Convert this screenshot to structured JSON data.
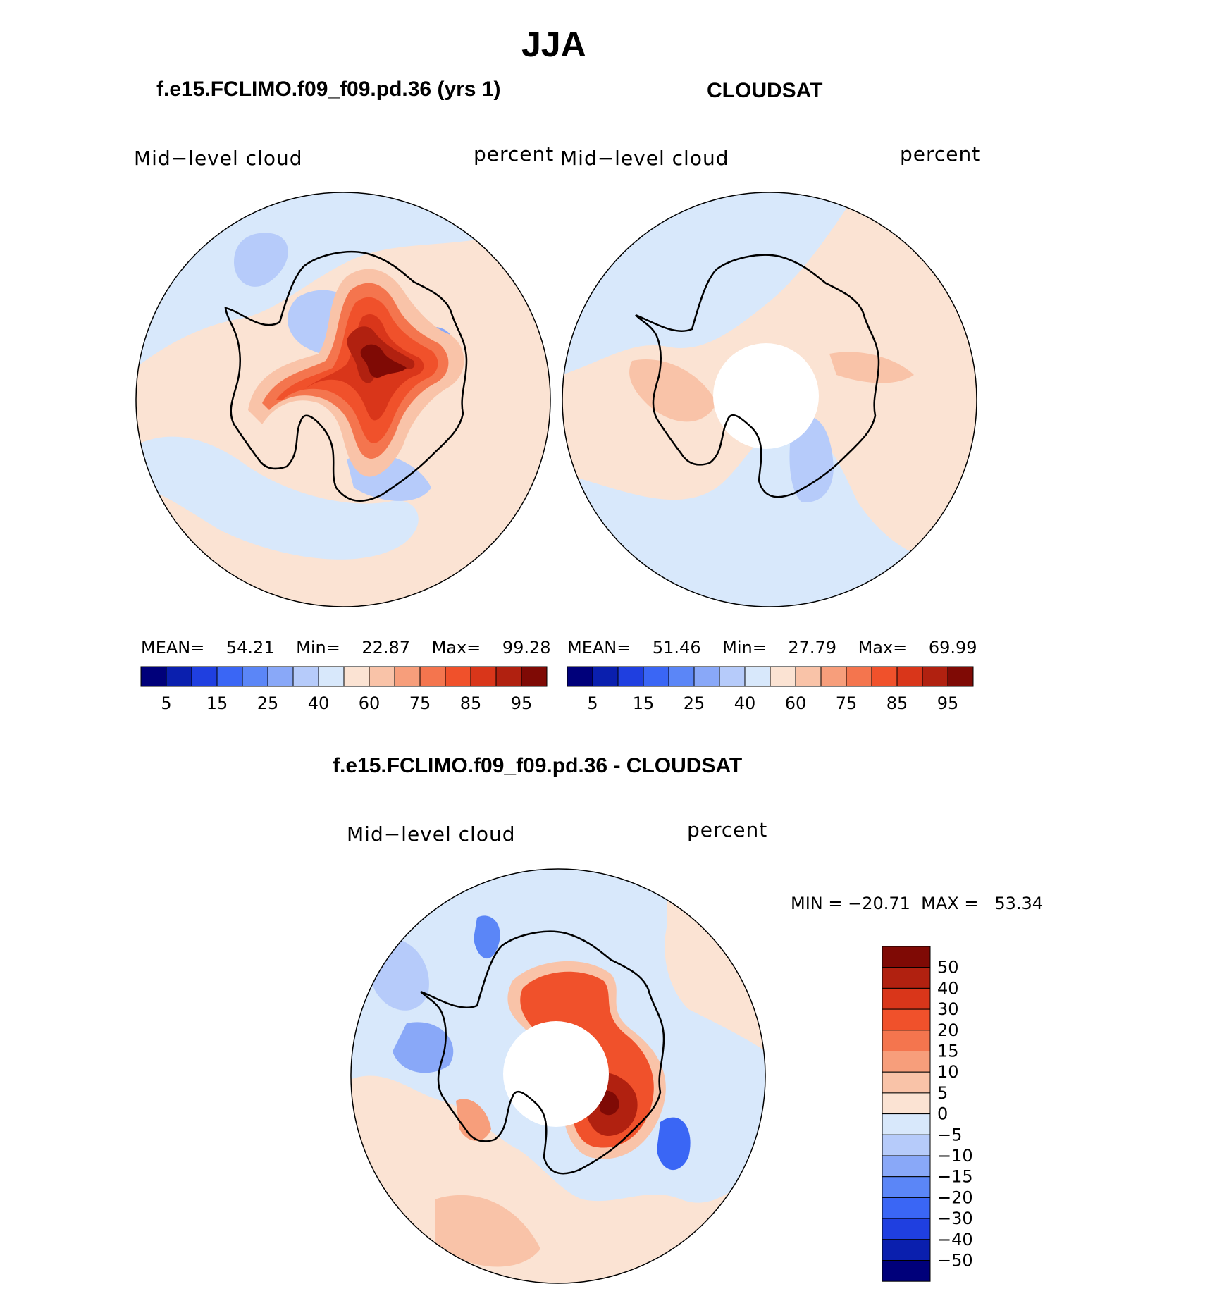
{
  "title": "JJA",
  "panels": [
    {
      "id": "model",
      "heading": "f.e15.FCLIMO.f09_f09.pd.36 (yrs 1)",
      "left_label": "Mid−level cloud",
      "right_label": "percent",
      "stats": {
        "mean_label": "MEAN=",
        "mean": "54.21",
        "min_label": "Min=",
        "min": "22.87",
        "max_label": "Max=",
        "max": "99.28"
      },
      "has_pole_hole": false,
      "colorbar_ticks": [
        "5",
        "15",
        "25",
        "40",
        "60",
        "75",
        "85",
        "95"
      ]
    },
    {
      "id": "obs",
      "heading": "CLOUDSAT",
      "left_label": "Mid−level cloud",
      "right_label": "percent",
      "stats": {
        "mean_label": "MEAN=",
        "mean": "51.46",
        "min_label": "Min=",
        "min": "27.79",
        "max_label": "Max=",
        "max": "69.99"
      },
      "has_pole_hole": true,
      "colorbar_ticks": [
        "5",
        "15",
        "25",
        "40",
        "60",
        "75",
        "85",
        "95"
      ]
    }
  ],
  "diff_panel": {
    "heading": "f.e15.FCLIMO.f09_f09.pd.36 - CLOUDSAT",
    "left_label": "Mid−level cloud",
    "right_label": "percent",
    "minmax_text": "MIN = −20.71  MAX =   53.34",
    "has_pole_hole": true,
    "colorbar_ticks": [
      "50",
      "40",
      "30",
      "20",
      "15",
      "10",
      "5",
      "0",
      "−5",
      "−10",
      "−15",
      "−20",
      "−30",
      "−40",
      "−50"
    ]
  },
  "colors": {
    "abs_scale": [
      "#00007a",
      "#0a1fae",
      "#1f3fe0",
      "#3a66f5",
      "#5b86f7",
      "#89a8f8",
      "#b6cbfa",
      "#d8e8fb",
      "#fbe3d3",
      "#f9c3a8",
      "#f79e7b",
      "#f4754e",
      "#f0512b",
      "#d9361a",
      "#b12110",
      "#7f0a05"
    ],
    "diff_scale": [
      "#00007a",
      "#0a1fae",
      "#1f3fe0",
      "#3a66f5",
      "#5b86f7",
      "#89a8f8",
      "#b6cbfa",
      "#d8e8fb",
      "#fbe3d3",
      "#f9c3a8",
      "#f79e7b",
      "#f4754e",
      "#f0512b",
      "#d9361a",
      "#b12110",
      "#7f0a05"
    ]
  }
}
